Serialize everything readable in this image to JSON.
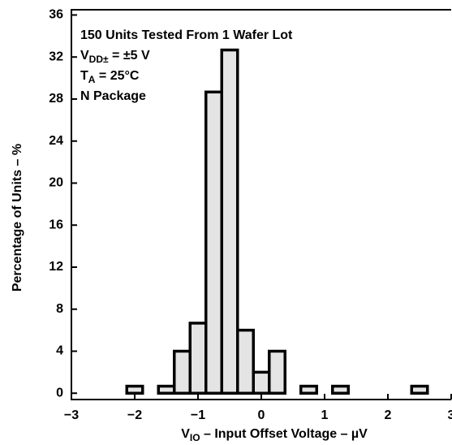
{
  "chart_data": {
    "type": "histogram",
    "annotations": [
      [
        {
          "text": "150 Units Tested From 1 Wafer Lot"
        }
      ],
      [
        {
          "text": "V"
        },
        {
          "text": "DD±",
          "sub": true
        },
        {
          "text": " = ±5 V"
        }
      ],
      [
        {
          "text": "T"
        },
        {
          "text": "A",
          "sub": true
        },
        {
          "text": " = 25°C"
        }
      ],
      [
        {
          "text": "N Package"
        }
      ]
    ],
    "xlabel": [
      {
        "text": "V"
      },
      {
        "text": "IO",
        "sub": true
      },
      {
        "text": " – Input Offset Voltage – µV"
      }
    ],
    "ylabel": "Percentage of Units – %",
    "bins": [
      -2.125,
      -1.875,
      -1.625,
      -1.375,
      -1.125,
      -0.875,
      -0.625,
      -0.375,
      -0.125,
      0.125,
      0.375,
      0.625,
      0.875,
      1.125,
      1.375,
      1.625,
      1.875,
      2.125,
      2.375,
      2.625
    ],
    "values": [
      0.67,
      0,
      0.67,
      4,
      6.67,
      28.67,
      32.67,
      6,
      2,
      4,
      0,
      0.67,
      0,
      0.67,
      0,
      0,
      0,
      0,
      0.67
    ],
    "color": "#e4e4e4",
    "xlim": [
      -3,
      3
    ],
    "xticks": [
      {
        "value": -3,
        "label": "−3"
      },
      {
        "value": -2,
        "label": "−2"
      },
      {
        "value": -1,
        "label": "−1"
      },
      0,
      1,
      2,
      3
    ],
    "ylim": [
      -0.6,
      36.5
    ],
    "yticks": [
      0,
      4,
      8,
      12,
      16,
      20,
      24,
      28,
      32,
      36
    ]
  }
}
